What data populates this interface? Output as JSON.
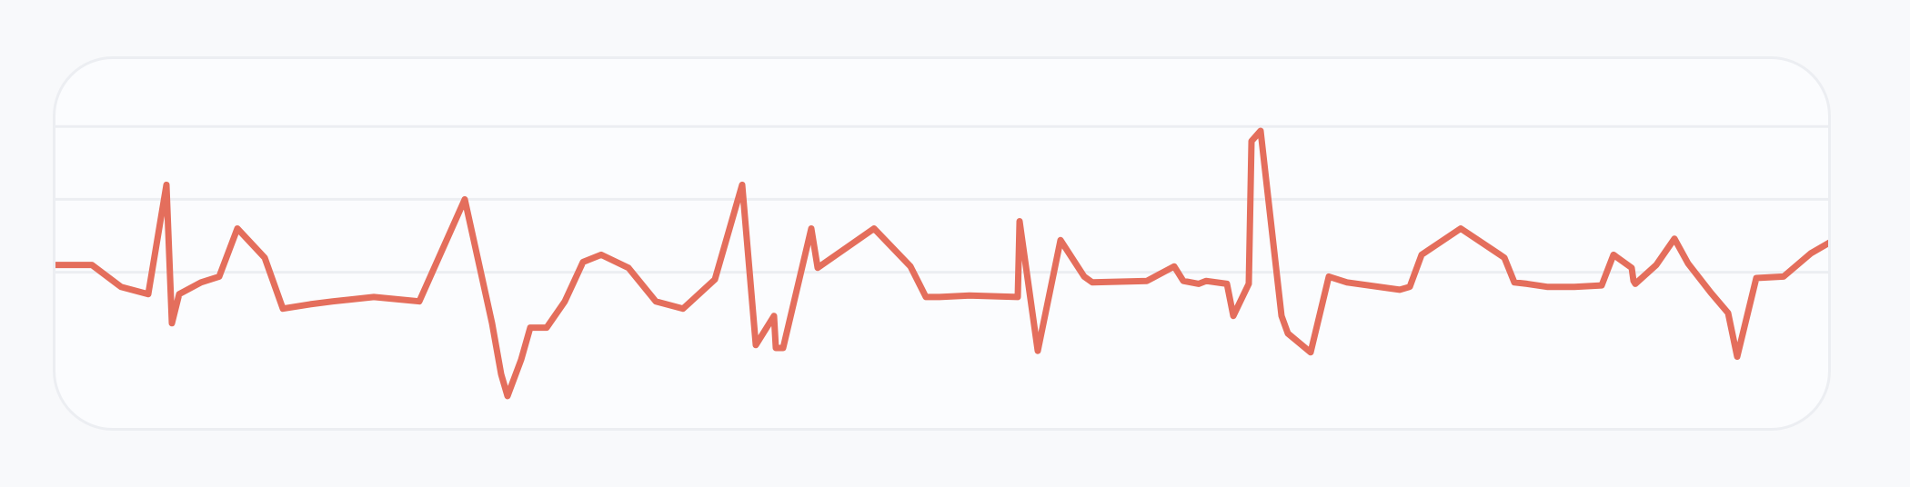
{
  "chart_data": {
    "type": "line",
    "title": "",
    "xlabel": "",
    "ylabel": "",
    "x": [
      0,
      40,
      72,
      102,
      122,
      128,
      136,
      160,
      180,
      200,
      230,
      250,
      280,
      305,
      350,
      400,
      450,
      480,
      490,
      497,
      512,
      522,
      540,
      560,
      580,
      600,
      630,
      660,
      690,
      725,
      755,
      770,
      790,
      792,
      800,
      831,
      838,
      900,
      940,
      957,
      972,
      1005,
      1058,
      1060,
      1080,
      1105,
      1131,
      1140,
      1200,
      1230,
      1240,
      1257,
      1265,
      1288,
      1295,
      1312,
      1315,
      1325,
      1348,
      1355,
      1380,
      1400,
      1420,
      1478,
      1489,
      1502,
      1545,
      1593,
      1604,
      1618,
      1640,
      1660,
      1670,
      1700,
      1713,
      1733,
      1735,
      1737,
      1760,
      1780,
      1795,
      1820,
      1839,
      1849,
      1870,
      1900,
      1930,
      1955
    ],
    "values": [
      0.05,
      0.05,
      -0.1,
      -0.15,
      0.6,
      -0.35,
      -0.15,
      -0.07,
      -0.03,
      0.3,
      0.1,
      -0.25,
      -0.22,
      -0.2,
      -0.17,
      -0.2,
      0.5,
      -0.35,
      -0.7,
      -0.85,
      -0.6,
      -0.38,
      -0.38,
      -0.2,
      0.07,
      0.12,
      0.03,
      -0.2,
      -0.25,
      -0.05,
      0.6,
      -0.5,
      -0.3,
      -0.52,
      -0.52,
      0.3,
      0.03,
      0.3,
      0.04,
      -0.17,
      -0.17,
      -0.16,
      -0.17,
      0.35,
      -0.54,
      0.22,
      -0.03,
      -0.07,
      -0.06,
      0.04,
      -0.06,
      -0.08,
      -0.06,
      -0.08,
      -0.3,
      -0.08,
      0.9,
      0.97,
      -0.3,
      -0.42,
      -0.55,
      -0.03,
      -0.07,
      -0.12,
      -0.1,
      0.12,
      0.3,
      0.1,
      -0.07,
      -0.08,
      -0.1,
      -0.1,
      -0.1,
      -0.09,
      0.12,
      0.03,
      -0.06,
      -0.08,
      0.05,
      0.23,
      0.06,
      -0.14,
      -0.28,
      -0.58,
      -0.04,
      -0.03,
      0.13,
      0.22
    ],
    "ylim": [
      -1,
      1.6
    ],
    "grid": true,
    "color": "#e46e5c",
    "gridColor": "#eceef2"
  }
}
